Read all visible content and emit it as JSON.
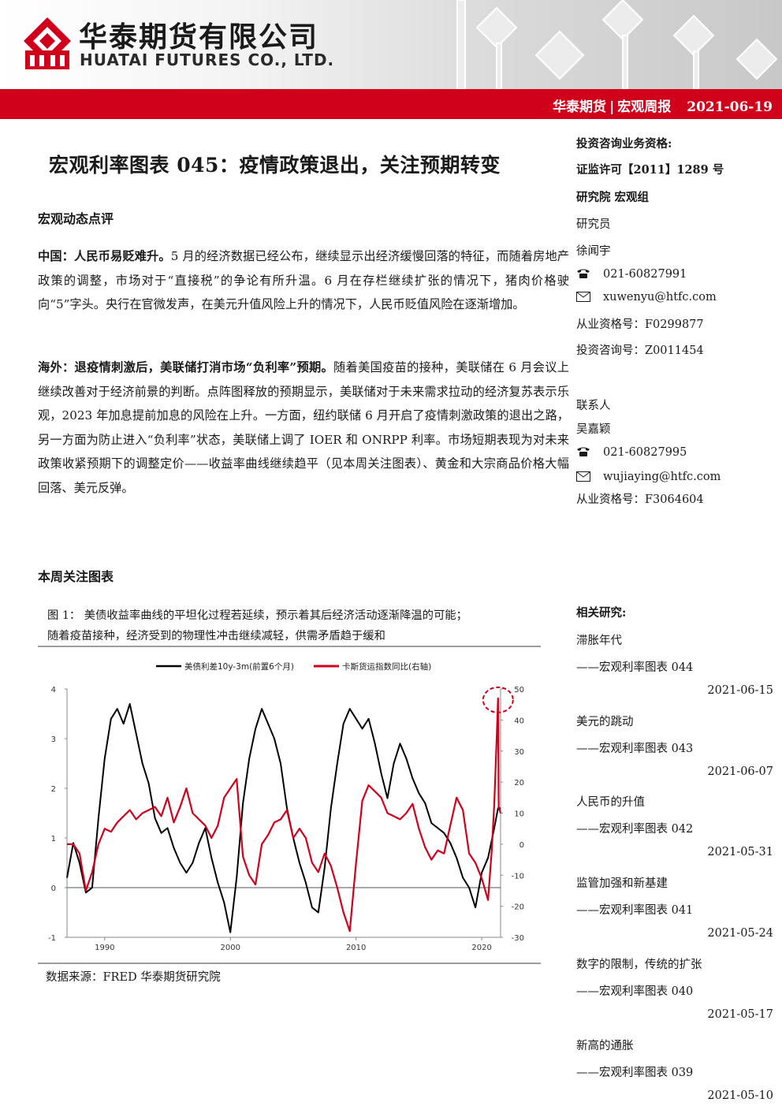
{
  "header": {
    "company_cn": "华泰期货有限公司",
    "company_en": "HUATAI FUTURES CO., LTD.",
    "bar_left": "华泰期货",
    "bar_sep": "|",
    "bar_right": "宏观周报",
    "date": "2021-06-19",
    "brand_red": "#d0021b"
  },
  "title": "宏观利率图表 045：疫情政策退出，关注预期转变",
  "section1": "宏观动态点评",
  "china": {
    "lead": "中国：人民币易贬难升。",
    "body": "5 月的经济数据已经公布，继续显示出经济缓慢回落的特征，而随着房地产政策的调整，市场对于“直接税”的争论有所升温。6 月在存栏继续扩张的情况下，猪肉价格驶向“5”字头。央行在官微发声，在美元升值风险上升的情况下，人民币贬值风险在逐渐增加。"
  },
  "overseas": {
    "lead": "海外：退疫情刺激后，美联储打消市场“负利率”预期。",
    "body": "随着美国疫苗的接种，美联储在 6 月会议上继续改善对于经济前景的判断。点阵图释放的预期显示，美联储对于未来需求拉动的经济复苏表示乐观，2023 年加息提前加息的风险在上升。一方面，纽约联储 6 月开启了疫情刺激政策的退出之路，另一方面为防止进入“负利率”状态，美联储上调了 IOER 和 ONRPP 利率。市场短期表现为对未来政策收紧预期下的调整定价——收益率曲线继续趋平（见本周关注图表）、黄金和大宗商品价格大幅回落、美元反弹。"
  },
  "section2": "本周关注图表",
  "figure": {
    "caption_line1": "图 1：  美债收益率曲线的平坦化过程若延续，预示着其后经济活动逐渐降温的可能；",
    "caption_line2": "随着疫苗接种，经济受到的物理性冲击继续减轻，供需矛盾趋于缓和",
    "source": "数据来源：FRED    华泰期货研究院"
  },
  "chart_data": {
    "type": "line",
    "x_range": [
      1987,
      2021.5
    ],
    "x_ticks": [
      "1990",
      "2000",
      "2010",
      "2020"
    ],
    "left_axis": {
      "range": [
        -1,
        4
      ],
      "ticks": [
        "-1",
        "0",
        "1",
        "2",
        "3",
        "4"
      ]
    },
    "right_axis": {
      "range": [
        -30,
        50
      ],
      "ticks": [
        "-30",
        "-20",
        "-10",
        "0",
        "10",
        "20",
        "30",
        "40",
        "50"
      ]
    },
    "zero_line": true,
    "highlight": "dashed red circle around the 2021 peak of the Cass series",
    "legend_position": "top",
    "series": [
      {
        "name": "美债利差10y-3m(前置6个月)",
        "axis": "left",
        "color": "#000000",
        "points": [
          [
            1987,
            0.2
          ],
          [
            1987.5,
            0.9
          ],
          [
            1988,
            0.5
          ],
          [
            1988.5,
            -0.1
          ],
          [
            1989,
            0
          ],
          [
            1989.5,
            1.4
          ],
          [
            1990,
            2.6
          ],
          [
            1990.5,
            3.4
          ],
          [
            1991,
            3.6
          ],
          [
            1991.5,
            3.3
          ],
          [
            1992,
            3.7
          ],
          [
            1992.5,
            3.1
          ],
          [
            1993,
            2.5
          ],
          [
            1993.5,
            2.1
          ],
          [
            1994,
            1.4
          ],
          [
            1994.5,
            1.1
          ],
          [
            1995,
            1.2
          ],
          [
            1995.5,
            0.8
          ],
          [
            1996,
            0.5
          ],
          [
            1996.5,
            0.3
          ],
          [
            1997,
            0.5
          ],
          [
            1997.5,
            0.9
          ],
          [
            1998,
            1.2
          ],
          [
            1998.5,
            0.6
          ],
          [
            1999,
            0.1
          ],
          [
            1999.5,
            -0.3
          ],
          [
            2000,
            -0.9
          ],
          [
            2000.5,
            0.2
          ],
          [
            2001,
            1.7
          ],
          [
            2001.5,
            2.6
          ],
          [
            2002,
            3.2
          ],
          [
            2002.5,
            3.6
          ],
          [
            2003,
            3.3
          ],
          [
            2003.5,
            3.0
          ],
          [
            2004,
            2.5
          ],
          [
            2004.5,
            1.6
          ],
          [
            2005,
            1.0
          ],
          [
            2005.5,
            0.5
          ],
          [
            2006,
            0.1
          ],
          [
            2006.5,
            -0.4
          ],
          [
            2007,
            -0.5
          ],
          [
            2007.5,
            0.4
          ],
          [
            2008,
            1.6
          ],
          [
            2008.5,
            2.5
          ],
          [
            2009,
            3.3
          ],
          [
            2009.5,
            3.6
          ],
          [
            2010,
            3.4
          ],
          [
            2010.5,
            3.2
          ],
          [
            2011,
            3.4
          ],
          [
            2011.5,
            2.9
          ],
          [
            2012,
            2.3
          ],
          [
            2012.5,
            1.8
          ],
          [
            2013,
            2.5
          ],
          [
            2013.5,
            2.9
          ],
          [
            2014,
            2.6
          ],
          [
            2014.5,
            2.2
          ],
          [
            2015,
            1.9
          ],
          [
            2015.5,
            1.7
          ],
          [
            2016,
            1.3
          ],
          [
            2016.5,
            1.2
          ],
          [
            2017,
            1.1
          ],
          [
            2017.5,
            0.9
          ],
          [
            2018,
            0.6
          ],
          [
            2018.5,
            0.2
          ],
          [
            2019,
            0
          ],
          [
            2019.5,
            -0.4
          ],
          [
            2020,
            0.3
          ],
          [
            2020.5,
            0.6
          ],
          [
            2021,
            1.2
          ],
          [
            2021.3,
            1.6
          ],
          [
            2021.5,
            1.6
          ]
        ]
      },
      {
        "name": "卡斯货运指数同比(右轴)",
        "axis": "right",
        "color": "#d0021b",
        "points": [
          [
            1987,
            0
          ],
          [
            1987.5,
            0
          ],
          [
            1988,
            -3
          ],
          [
            1988.5,
            -15
          ],
          [
            1989,
            -9
          ],
          [
            1989.5,
            0
          ],
          [
            1990,
            5
          ],
          [
            1990.5,
            4
          ],
          [
            1991,
            7
          ],
          [
            1991.5,
            9
          ],
          [
            1992,
            11
          ],
          [
            1992.5,
            8
          ],
          [
            1993,
            10
          ],
          [
            1993.5,
            11
          ],
          [
            1994,
            12
          ],
          [
            1994.5,
            9
          ],
          [
            1995,
            15
          ],
          [
            1995.5,
            7
          ],
          [
            1996,
            12
          ],
          [
            1996.5,
            18
          ],
          [
            1997,
            10
          ],
          [
            1997.5,
            8
          ],
          [
            1998,
            6
          ],
          [
            1998.5,
            2
          ],
          [
            1999,
            6
          ],
          [
            1999.5,
            15
          ],
          [
            2000,
            18
          ],
          [
            2000.5,
            21
          ],
          [
            2001,
            -4
          ],
          [
            2001.5,
            -10
          ],
          [
            2002,
            -13
          ],
          [
            2002.5,
            0
          ],
          [
            2003,
            3
          ],
          [
            2003.5,
            7
          ],
          [
            2004,
            8
          ],
          [
            2004.5,
            11
          ],
          [
            2005,
            2
          ],
          [
            2005.5,
            5
          ],
          [
            2006,
            2
          ],
          [
            2006.5,
            -6
          ],
          [
            2007,
            -9
          ],
          [
            2007.5,
            -3
          ],
          [
            2008,
            -7
          ],
          [
            2008.5,
            -14
          ],
          [
            2009,
            -22
          ],
          [
            2009.5,
            -28
          ],
          [
            2010,
            -6
          ],
          [
            2010.5,
            14
          ],
          [
            2011,
            19
          ],
          [
            2011.5,
            17
          ],
          [
            2012,
            15
          ],
          [
            2012.5,
            10
          ],
          [
            2013,
            9
          ],
          [
            2013.5,
            8
          ],
          [
            2014,
            10
          ],
          [
            2014.5,
            13
          ],
          [
            2015,
            5
          ],
          [
            2015.5,
            -1
          ],
          [
            2016,
            -5
          ],
          [
            2016.5,
            -2
          ],
          [
            2017,
            -3
          ],
          [
            2017.5,
            6
          ],
          [
            2018,
            15
          ],
          [
            2018.5,
            11
          ],
          [
            2019,
            -3
          ],
          [
            2019.5,
            -6
          ],
          [
            2020,
            -11
          ],
          [
            2020.5,
            -18
          ],
          [
            2020.8,
            -2
          ],
          [
            2021,
            13
          ],
          [
            2021.2,
            35
          ],
          [
            2021.3,
            47
          ],
          [
            2021.35,
            12
          ],
          [
            2021.5,
            10
          ]
        ]
      }
    ]
  },
  "sidebar": {
    "qual_label": "投资咨询业务资格:",
    "license": "证监许可【2011】1289 号",
    "dept": "研究院  宏观组",
    "role1": "研究员",
    "name1": "徐闻宇",
    "phone1": "021-60827991",
    "email1": "xuwenyu@htfc.com",
    "cert1": "从业资格号：F0299877",
    "advisory1": "投资咨询号：Z0011454",
    "role2": "联系人",
    "name2": "吴嘉颖",
    "phone2": "021-60827995",
    "email2": "wujiaying@htfc.com",
    "cert2": "从业资格号：F3064604"
  },
  "related": {
    "label": "相关研究:",
    "items": [
      {
        "title": "滞胀年代",
        "sub": "——宏观利率图表 044",
        "date": "2021-06-15"
      },
      {
        "title": "美元的跳动",
        "sub": "——宏观利率图表 043",
        "date": "2021-06-07"
      },
      {
        "title": "人民币的升值",
        "sub": "——宏观利率图表 042",
        "date": "2021-05-31"
      },
      {
        "title": "监管加强和新基建",
        "sub": "——宏观利率图表 041",
        "date": "2021-05-24"
      },
      {
        "title": "数字的限制，传统的扩张",
        "sub": "——宏观利率图表 040",
        "date": "2021-05-17"
      },
      {
        "title": "新高的通胀",
        "sub": "——宏观利率图表 039",
        "date": "2021-05-10"
      }
    ]
  }
}
